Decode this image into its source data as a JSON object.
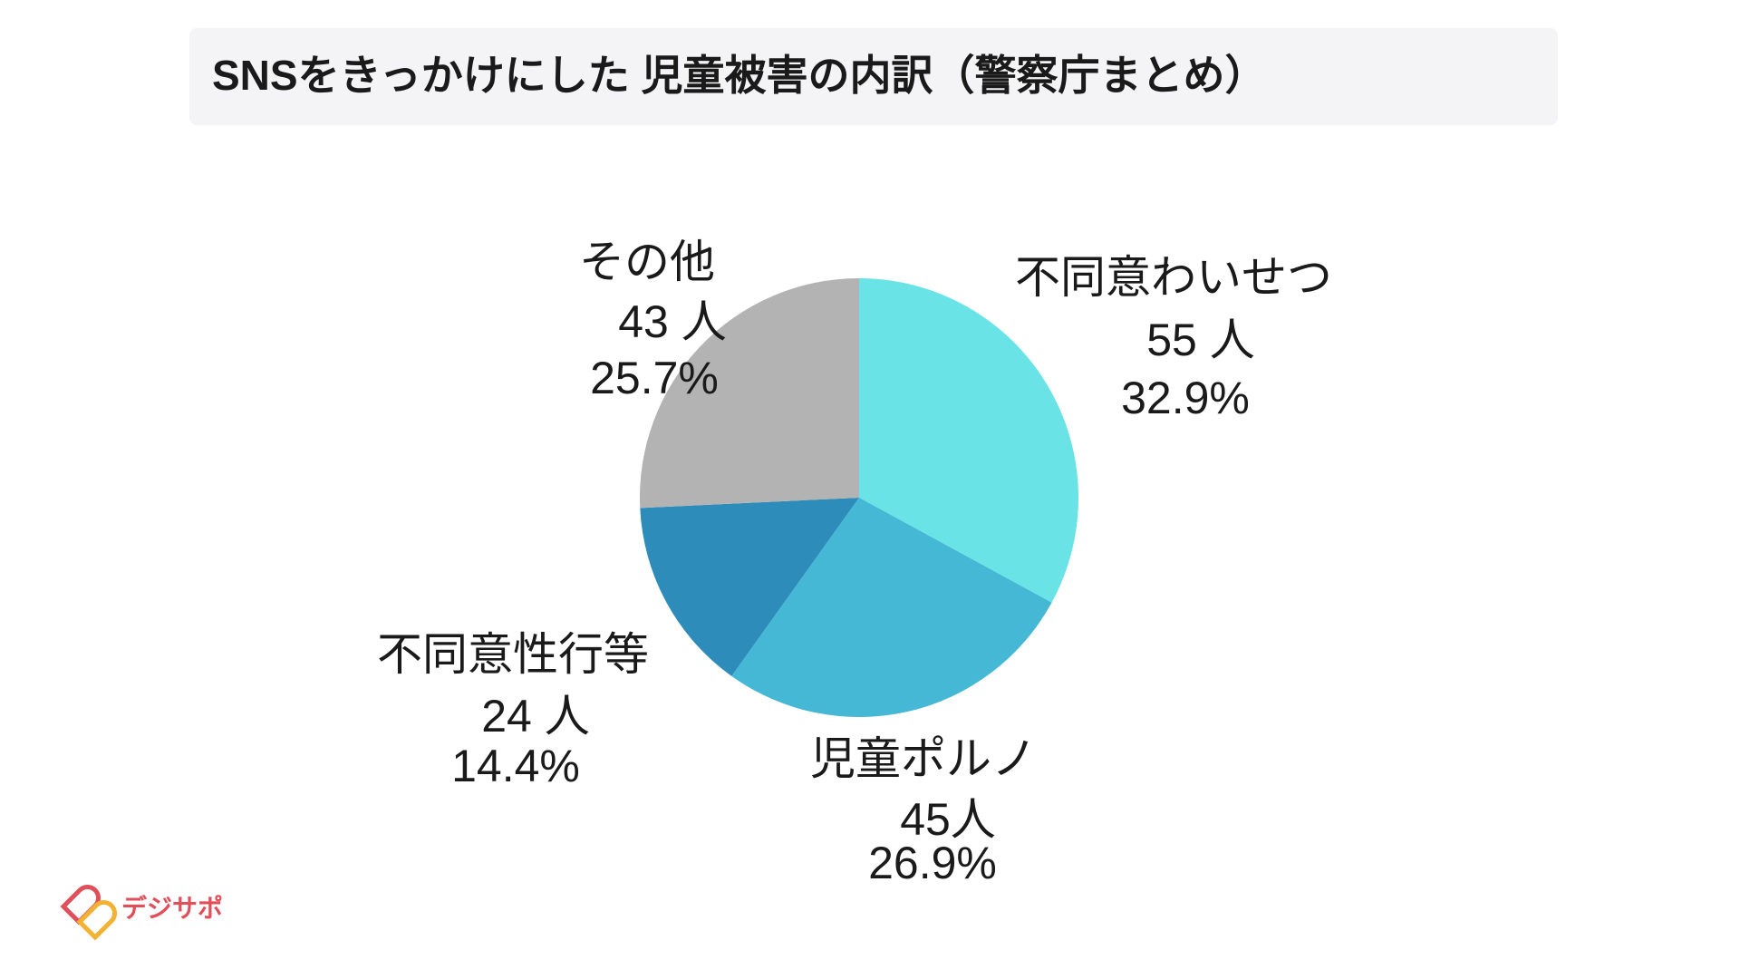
{
  "chart_data": {
    "type": "pie",
    "title": "SNSをきっかけにした 児童被害の内訳（警察庁まとめ）",
    "categories": [
      "不同意わいせつ",
      "児童ポルノ",
      "不同意性行等",
      "その他"
    ],
    "values": [
      55,
      45,
      24,
      43
    ],
    "value_labels": [
      "55 人",
      "45人",
      "24 人",
      "43 人"
    ],
    "percent_labels": [
      "32.9%",
      "26.9%",
      "14.4%",
      "25.7%"
    ],
    "colors": [
      "#6ae3e6",
      "#45b8d6",
      "#2e8cba",
      "#b3b3b3"
    ]
  },
  "brand": "デジサポ"
}
